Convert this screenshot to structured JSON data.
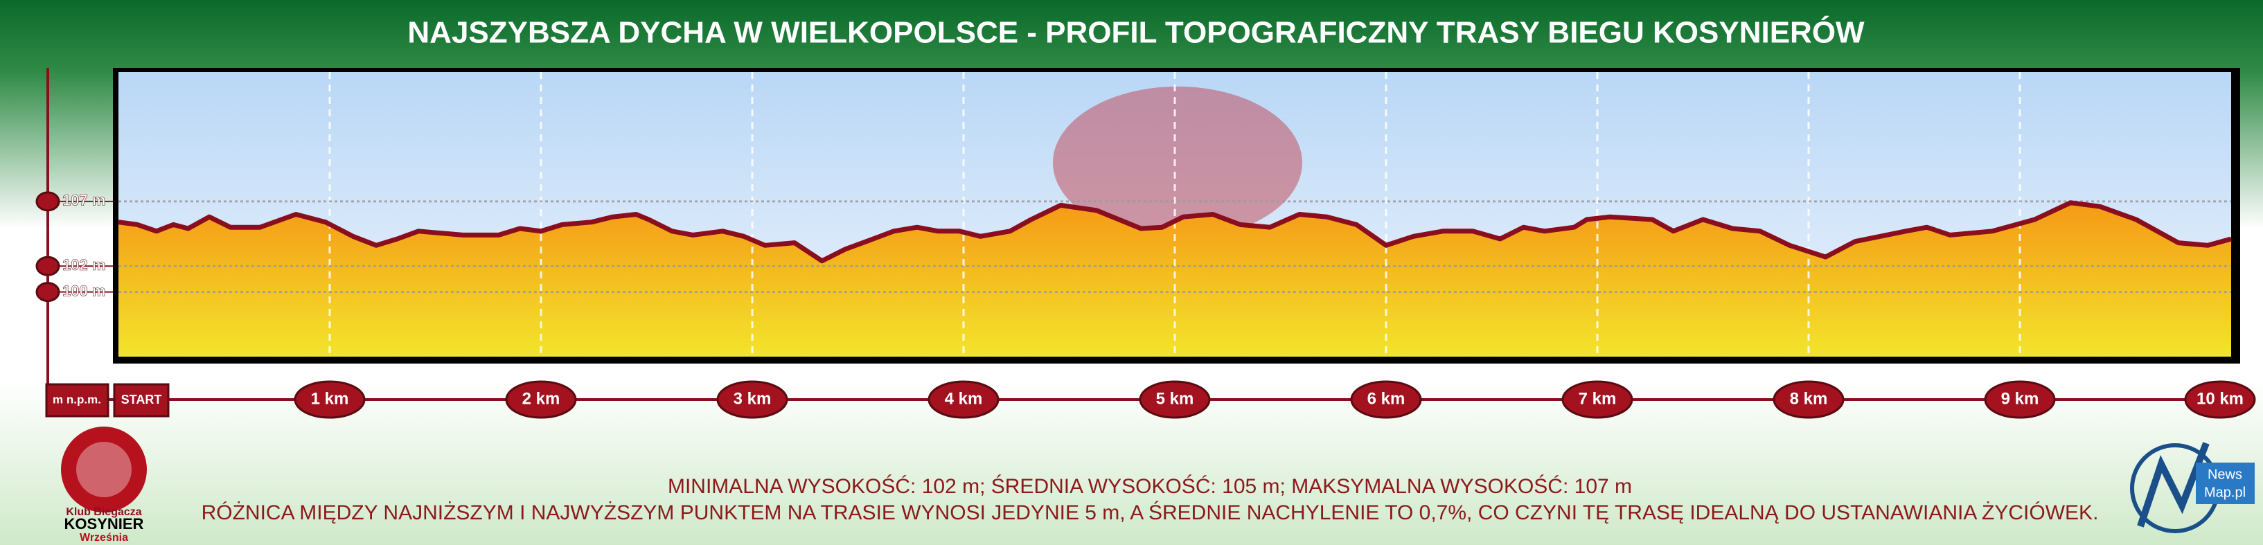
{
  "chart_data": {
    "type": "area",
    "title": "NAJSZYBSZA DYCHA W WIELKOPOLSCE - PROFIL TOPOGRAFICZNY TRASY BIEGU KOSYNIERÓW",
    "y_axis_label": "m n.p.m.",
    "x": [
      0,
      0.09,
      0.18,
      0.26,
      0.33,
      0.43,
      0.53,
      0.67,
      0.84,
      0.98,
      1.11,
      1.22,
      1.32,
      1.42,
      1.63,
      1.8,
      1.9,
      2.0,
      2.1,
      2.24,
      2.34,
      2.45,
      2.51,
      2.62,
      2.72,
      2.86,
      2.96,
      3.06,
      3.2,
      3.33,
      3.44,
      3.54,
      3.67,
      3.78,
      3.88,
      3.98,
      4.08,
      4.22,
      4.32,
      4.46,
      4.63,
      4.84,
      4.94,
      5.04,
      5.18,
      5.31,
      5.45,
      5.59,
      5.72,
      5.86,
      6.0,
      6.13,
      6.27,
      6.41,
      6.54,
      6.65,
      6.75,
      6.89,
      6.95,
      7.06,
      7.26,
      7.36,
      7.5,
      7.64,
      7.77,
      7.91,
      8.08,
      8.22,
      8.46,
      8.56,
      8.67,
      8.87,
      9.07,
      9.24,
      9.38,
      9.55,
      9.75,
      9.89,
      10.0
    ],
    "values": [
      105.4,
      105.2,
      104.7,
      105.2,
      104.9,
      105.8,
      105.0,
      105.0,
      106.0,
      105.4,
      104.3,
      103.6,
      104.1,
      104.7,
      104.4,
      104.4,
      104.9,
      104.7,
      105.2,
      105.4,
      105.8,
      106.0,
      105.6,
      104.7,
      104.4,
      104.7,
      104.3,
      103.6,
      103.8,
      102.4,
      103.3,
      103.9,
      104.7,
      105.0,
      104.7,
      104.7,
      104.3,
      104.7,
      105.6,
      106.7,
      106.3,
      104.9,
      105.0,
      105.8,
      106.0,
      105.2,
      105.0,
      106.0,
      105.8,
      105.2,
      103.6,
      104.3,
      104.7,
      104.7,
      104.1,
      105.0,
      104.7,
      105.0,
      105.6,
      105.8,
      105.6,
      104.7,
      105.6,
      104.9,
      104.7,
      103.6,
      102.7,
      103.9,
      104.7,
      105.0,
      104.4,
      104.7,
      105.6,
      106.9,
      106.6,
      105.6,
      103.8,
      103.6,
      104.1
    ],
    "color": "#8b0e1e",
    "xlim": [
      0,
      10
    ],
    "ylim": [
      95,
      117
    ],
    "xticks": [
      {
        "value": 0,
        "label": "START"
      },
      {
        "value": 1,
        "label": "1 km"
      },
      {
        "value": 2,
        "label": "2 km"
      },
      {
        "value": 3,
        "label": "3 km"
      },
      {
        "value": 4,
        "label": "4 km"
      },
      {
        "value": 5,
        "label": "5 km"
      },
      {
        "value": 6,
        "label": "6 km"
      },
      {
        "value": 7,
        "label": "7 km"
      },
      {
        "value": 8,
        "label": "8 km"
      },
      {
        "value": 9,
        "label": "9 km"
      },
      {
        "value": 10,
        "label": "10 km"
      }
    ],
    "yticks": [
      {
        "value": 100,
        "label": "100 m"
      },
      {
        "value": 102,
        "label": "102 m"
      },
      {
        "value": 107,
        "label": "107 m"
      }
    ],
    "grid": true
  },
  "footer": {
    "line1": "MINIMALNA WYSOKOŚĆ: 102 m; ŚREDNIA WYSOKOŚĆ: 105 m; MAKSYMALNA WYSOKOŚĆ: 107 m",
    "line2": "RÓŻNICA MIĘDZY NAJNIŻSZYM I NAJWYŻSZYM PUNKTEM NA TRASIE WYNOSI JEDYNIE 5 m, A ŚREDNIE NACHYLENIE TO 0,7%, CO CZYNI TĘ TRASĘ IDEALNĄ DO USTANAWIANIA ŻYCIÓWEK."
  },
  "logos": {
    "left": {
      "line1": "Klub Biegacza",
      "line2": "KOSYNIER",
      "line3": "Września"
    },
    "right": {
      "line1": "News",
      "line2": "Map.pl"
    }
  }
}
